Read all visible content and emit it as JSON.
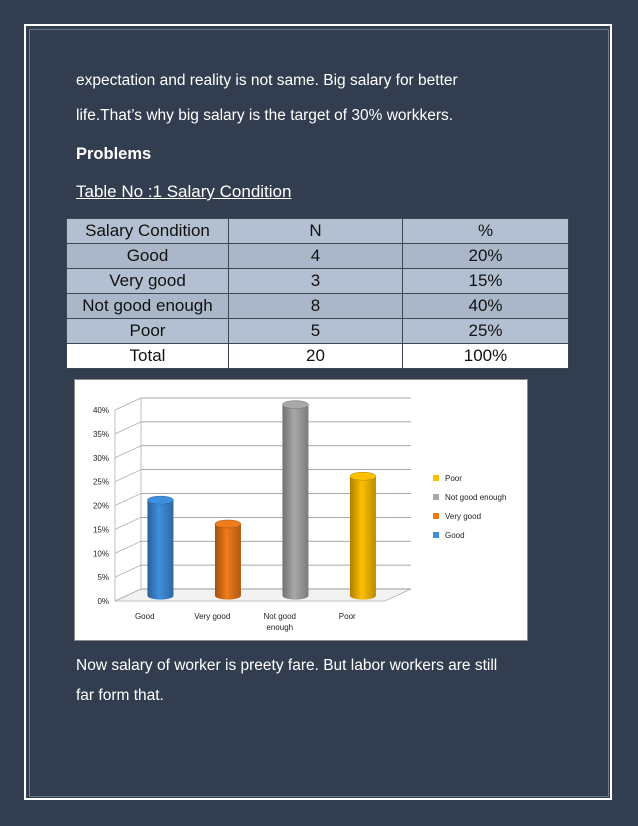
{
  "paragraph_top": {
    "line1": "expectation and reality is not same. Big salary for better",
    "line2": "life.That’s why big salary  is the target of 30% workkers."
  },
  "heading": "Problems",
  "table_title": "Table No :1 Salary Condition",
  "table": {
    "headers": [
      "Salary Condition",
      "N",
      "%"
    ],
    "rows": [
      [
        "Good",
        "4",
        "20%"
      ],
      [
        "Very good",
        "3",
        "15%"
      ],
      [
        "Not good enough",
        "8",
        "40%"
      ],
      [
        "Poor",
        "5",
        "25%"
      ],
      [
        "Total",
        "20",
        "100%"
      ]
    ]
  },
  "chart_data": {
    "type": "bar",
    "style": "3d-cylinder",
    "categories": [
      "Good",
      "Very good",
      "Not good enough",
      "Poor"
    ],
    "category_tick_labels": [
      [
        "Good"
      ],
      [
        "Very good"
      ],
      [
        "Not good",
        "enough"
      ],
      [
        "Poor"
      ]
    ],
    "values": [
      20,
      15,
      40,
      25
    ],
    "colors": [
      "#3f8fdf",
      "#f07b1a",
      "#a8a8a8",
      "#ffc000"
    ],
    "ylim": [
      0,
      40
    ],
    "ytick_labels": [
      "0%",
      "5%",
      "10%",
      "15%",
      "20%",
      "25%",
      "30%",
      "35%",
      "40%"
    ],
    "grid": true,
    "legend": {
      "placement": "right",
      "entries": [
        {
          "label": "Poor",
          "color": "#ffc000"
        },
        {
          "label": "Not good enough",
          "color": "#a8a8a8"
        },
        {
          "label": "Very good",
          "color": "#f07b1a"
        },
        {
          "label": "Good",
          "color": "#3f8fdf"
        }
      ]
    }
  },
  "paragraph_bottom": {
    "line1": "Now salary  of worker is  preety fare. But labor workers are still",
    "line2": "far form that."
  }
}
